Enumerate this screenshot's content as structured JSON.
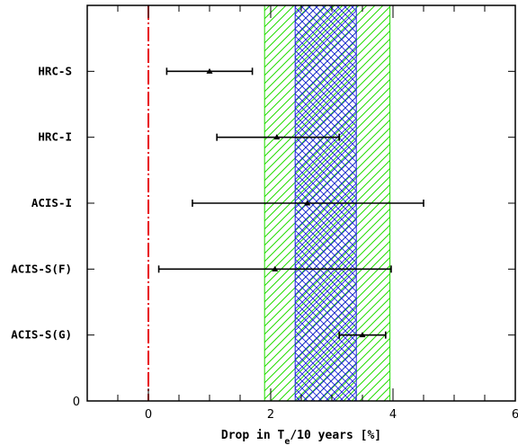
{
  "chart_data": {
    "type": "scatter",
    "xlabel": {
      "prefix": "Drop in T",
      "subscript": "e",
      "suffix": "/10 years [%]"
    },
    "xlim": [
      -1,
      6
    ],
    "x_ticks": [
      0,
      2,
      4,
      6
    ],
    "y_ticks": [
      0
    ],
    "categories": [
      "ACIS-S(G)",
      "ACIS-S(F)",
      "ACIS-I",
      "HRC-I",
      "HRC-S"
    ],
    "points": [
      {
        "category": "HRC-S",
        "value": 1.0,
        "err_low": 0.3,
        "err_high": 1.7
      },
      {
        "category": "HRC-I",
        "value": 2.1,
        "err_low": 1.12,
        "err_high": 3.12
      },
      {
        "category": "ACIS-I",
        "value": 2.6,
        "err_low": 0.72,
        "err_high": 4.5
      },
      {
        "category": "ACIS-S(F)",
        "value": 2.07,
        "err_low": 0.17,
        "err_high": 3.97
      },
      {
        "category": "ACIS-S(G)",
        "value": 3.5,
        "err_low": 3.12,
        "err_high": 3.88
      }
    ],
    "reference_line": {
      "x": 0,
      "color": "#e8000b",
      "style": "dash-dot"
    },
    "bands": [
      {
        "name": "outer",
        "x0": 1.9,
        "x1": 3.95,
        "color": "#22dd00",
        "pattern": "diagonal-hatch"
      },
      {
        "name": "inner",
        "x0": 2.4,
        "x1": 3.4,
        "color": "#1f1fe0",
        "pattern": "cross-hatch"
      }
    ],
    "grid": false,
    "legend": "none"
  }
}
